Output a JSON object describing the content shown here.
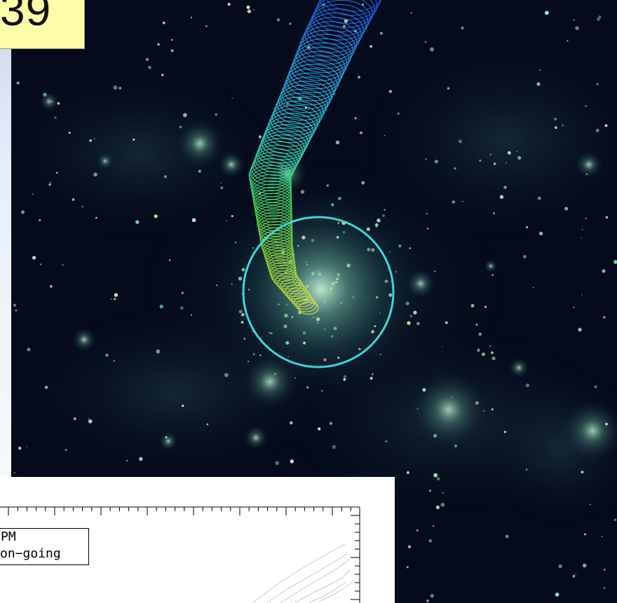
{
  "counter": {
    "text": "39"
  },
  "simulation": {
    "background": "#050b1c",
    "circle_color": "#3dd6d8",
    "trail_colors": [
      "#1f4fe0",
      "#2aa4e8",
      "#36d6c4",
      "#46d35a",
      "#8ad23a",
      "#d8e03c"
    ]
  },
  "plot": {
    "legend": {
      "line1": "PM",
      "line2": "on−going"
    }
  }
}
